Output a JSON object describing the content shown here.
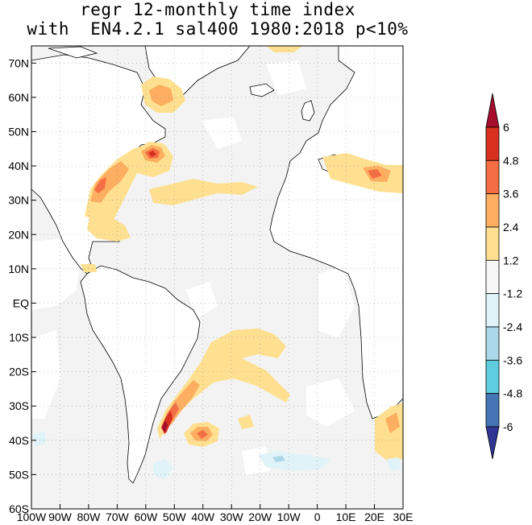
{
  "title": {
    "line1": "regr 12-monthly time index",
    "line2": "with  EN4.2.1 sal400 1980:2018 p<10%"
  },
  "map": {
    "lon_range": [
      -100,
      30
    ],
    "lat_range": [
      -60,
      75
    ],
    "y_tick_labels": [
      "70N",
      "60N",
      "50N",
      "40N",
      "30N",
      "20N",
      "10N",
      "EQ",
      "10S",
      "20S",
      "30S",
      "40S",
      "50S",
      "60S"
    ],
    "x_tick_labels": [
      "100W",
      "90W",
      "80W",
      "70W",
      "60W",
      "50W",
      "40W",
      "30W",
      "20W",
      "10W",
      "0",
      "10E",
      "20E",
      "30E"
    ],
    "grid": "dotted",
    "land_color": "#ffffff",
    "insignificant_color": "#f2f2f2"
  },
  "colorbar": {
    "labels": [
      "6",
      "4.8",
      "3.6",
      "2.4",
      "1.2",
      "-1.2",
      "-2.4",
      "-3.6",
      "-4.8",
      "-6"
    ],
    "colors": [
      "#a50f2d",
      "#d7301f",
      "#f46d43",
      "#fdae61",
      "#fee090",
      "#f7f7f7",
      "#e0f3f8",
      "#abd9e9",
      "#5fcde0",
      "#4575b4",
      "#313695"
    ]
  }
}
